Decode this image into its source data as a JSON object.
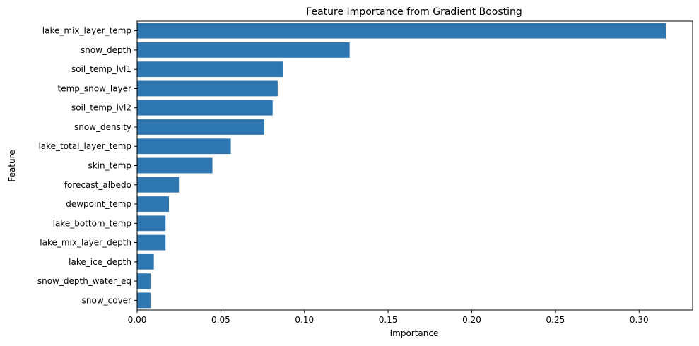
{
  "chart_data": {
    "type": "bar",
    "orientation": "horizontal",
    "title": "Feature Importance from Gradient Boosting",
    "xlabel": "Importance",
    "ylabel": "Feature",
    "xlim": [
      0,
      0.332
    ],
    "xticks": [
      0.0,
      0.05,
      0.1,
      0.15,
      0.2,
      0.25,
      0.3
    ],
    "xtick_labels": [
      "0.00",
      "0.05",
      "0.10",
      "0.15",
      "0.20",
      "0.25",
      "0.30"
    ],
    "grid": false,
    "bar_color": "#2e77b2",
    "categories": [
      "lake_mix_layer_temp",
      "snow_depth",
      "soil_temp_lvl1",
      "temp_snow_layer",
      "soil_temp_lvl2",
      "snow_density",
      "lake_total_layer_temp",
      "skin_temp",
      "forecast_albedo",
      "dewpoint_temp",
      "lake_bottom_temp",
      "lake_mix_layer_depth",
      "lake_ice_depth",
      "snow_depth_water_eq",
      "snow_cover"
    ],
    "values": [
      0.316,
      0.127,
      0.087,
      0.084,
      0.081,
      0.076,
      0.056,
      0.045,
      0.025,
      0.019,
      0.017,
      0.017,
      0.01,
      0.008,
      0.008
    ]
  }
}
